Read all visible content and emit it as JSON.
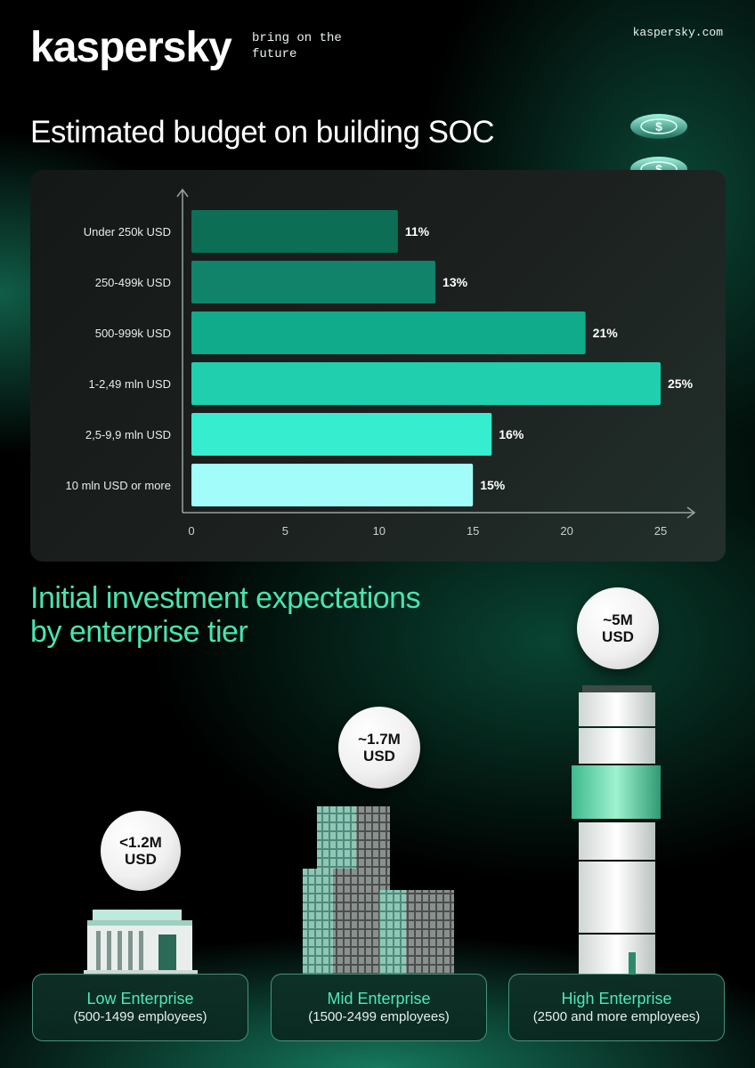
{
  "brand": {
    "logo": "kaspersky",
    "tagline": "bring on the future",
    "site": "kaspersky.com"
  },
  "chart_section": {
    "title": "Estimated budget on building SOC"
  },
  "chart_data": {
    "type": "bar",
    "orientation": "horizontal",
    "title": "Estimated budget on building SOC",
    "categories": [
      "Under 250k USD",
      "250-499k USD",
      "500-999k USD",
      "1-2,49 mln USD",
      "2,5-9,9 mln USD",
      "10 mln USD or more"
    ],
    "values": [
      11,
      13,
      21,
      25,
      16,
      15
    ],
    "value_labels": [
      "11%",
      "13%",
      "21%",
      "25%",
      "16%",
      "15%"
    ],
    "bar_colors": [
      "#0b6e55",
      "#10836a",
      "#0fab8b",
      "#1fcfad",
      "#36edd0",
      "#a1fcfa"
    ],
    "x_ticks": [
      0,
      5,
      10,
      15,
      20,
      25
    ],
    "xlim": [
      0,
      25
    ],
    "grid": false,
    "legend": "none"
  },
  "tiers_section": {
    "title_line1": "Initial investment expectations",
    "title_line2": "by enterprise tier",
    "tiers": [
      {
        "name": "Low Enterprise",
        "employees": "(500-1499 employees)",
        "amount_line1": "<1.2M",
        "amount_line2": "USD"
      },
      {
        "name": "Mid Enterprise",
        "employees": "(1500-2499 employees)",
        "amount_line1": "~1.7M",
        "amount_line2": "USD"
      },
      {
        "name": "High Enterprise",
        "employees": "(2500 and more employees)",
        "amount_line1": "~5M",
        "amount_line2": "USD"
      }
    ]
  },
  "colors": {
    "accent": "#47e5b0",
    "background": "#000000",
    "panel": "#1a1f1d"
  },
  "icons": [
    "dollar-coin-icon",
    "low-building-icon",
    "mid-buildings-icon",
    "tower-icon"
  ]
}
